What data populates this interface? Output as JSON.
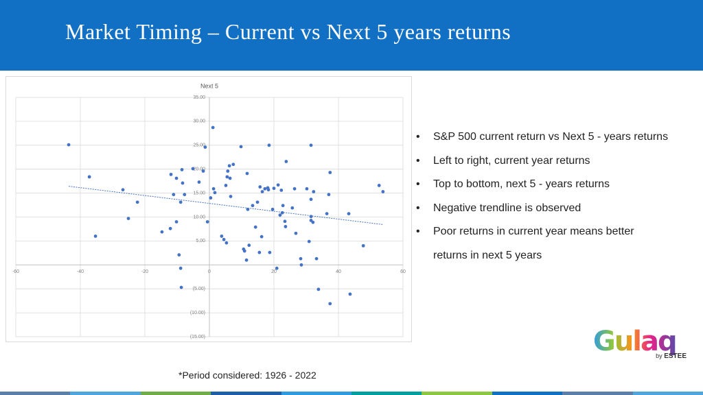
{
  "header": {
    "title": "Market Timing – Current vs Next 5 years returns"
  },
  "chart_data": {
    "type": "scatter",
    "title": "Next 5",
    "x": [
      -43.6,
      -37.2,
      -35.3,
      -26.8,
      -25.1,
      -22.3,
      -14.7,
      -11.9,
      -12.1,
      -11.1,
      -10.2,
      -10.2,
      -9.4,
      -8.9,
      -8.9,
      -8.7,
      -8.5,
      -8.3,
      -7.7,
      -5.1,
      -3.2,
      -1.9,
      -1.3,
      -0.6,
      0.4,
      1.1,
      1.3,
      1.7,
      3.8,
      4.5,
      5.1,
      5.3,
      5.5,
      5.7,
      6.2,
      6.4,
      6.6,
      7.4,
      9.8,
      10.6,
      10.9,
      11.5,
      11.7,
      11.9,
      12.3,
      13.4,
      14.3,
      14.9,
      15.5,
      15.7,
      16.2,
      16.4,
      17.2,
      18.1,
      18.3,
      18.5,
      18.7,
      19.6,
      20.0,
      20.9,
      21.3,
      21.9,
      22.3,
      22.6,
      22.8,
      23.4,
      23.6,
      23.8,
      25.7,
      26.4,
      26.8,
      28.3,
      28.5,
      30.2,
      30.9,
      31.5,
      31.5,
      31.5,
      31.5,
      32.1,
      32.3,
      33.2,
      33.8,
      36.4,
      37.0,
      37.4,
      37.4,
      43.2,
      43.6,
      47.7,
      52.6,
      53.8
    ],
    "values": [
      25.1,
      18.4,
      6.0,
      15.7,
      9.7,
      13.1,
      6.9,
      18.9,
      7.6,
      14.7,
      9.0,
      18.1,
      2.1,
      13.1,
      -0.7,
      -4.7,
      19.9,
      17.1,
      14.7,
      20.1,
      17.3,
      19.6,
      24.6,
      9.0,
      14.0,
      28.7,
      15.9,
      15.1,
      6.0,
      5.3,
      16.6,
      4.6,
      18.4,
      19.6,
      20.7,
      18.1,
      14.3,
      21.0,
      24.7,
      3.3,
      2.9,
      1.0,
      19.1,
      11.6,
      4.1,
      12.4,
      7.9,
      13.1,
      2.6,
      16.3,
      5.9,
      15.3,
      15.9,
      16.1,
      15.7,
      25.0,
      2.6,
      11.6,
      16.0,
      -0.7,
      16.7,
      10.4,
      15.6,
      10.9,
      12.4,
      9.1,
      8.0,
      21.6,
      11.9,
      15.9,
      6.6,
      1.3,
      0.0,
      15.9,
      4.9,
      25.0,
      10.1,
      13.7,
      9.3,
      8.9,
      15.3,
      1.3,
      -5.1,
      10.7,
      14.7,
      19.3,
      -8.1,
      10.7,
      -6.1,
      4.0,
      16.6,
      15.3
    ],
    "color": "#4472c4",
    "xlim": [
      -60,
      60
    ],
    "xticks": [
      -60,
      -40,
      -20,
      0,
      20,
      40,
      60
    ],
    "ylim": [
      -15,
      35
    ],
    "yticks": [
      {
        "value": -15,
        "label": "(15.00)"
      },
      {
        "value": -10,
        "label": "(10.00)"
      },
      {
        "value": -5,
        "label": "(5.00)"
      },
      {
        "value": 5,
        "label": "5.00"
      },
      {
        "value": 10,
        "label": "10.00"
      },
      {
        "value": 15,
        "label": "15.00"
      },
      {
        "value": 20,
        "label": "20.00"
      },
      {
        "value": 25,
        "label": "25.00"
      },
      {
        "value": 30,
        "label": "30.00"
      },
      {
        "value": 35,
        "label": "35.00"
      }
    ],
    "grid": true,
    "trendline": true
  },
  "bullets": [
    "S&P 500 current return vs Next 5 - years returns",
    "Left to right, current year returns",
    "Top to bottom, next 5 - years returns",
    "Negative trendline is observed",
    "Poor returns in current year means better returns in next 5 years"
  ],
  "footnote": "*Period considered: 1926 - 2022",
  "logo": {
    "name": "Gulaq",
    "tagline_prefix": "by",
    "tagline_brand": "ESTEE"
  }
}
